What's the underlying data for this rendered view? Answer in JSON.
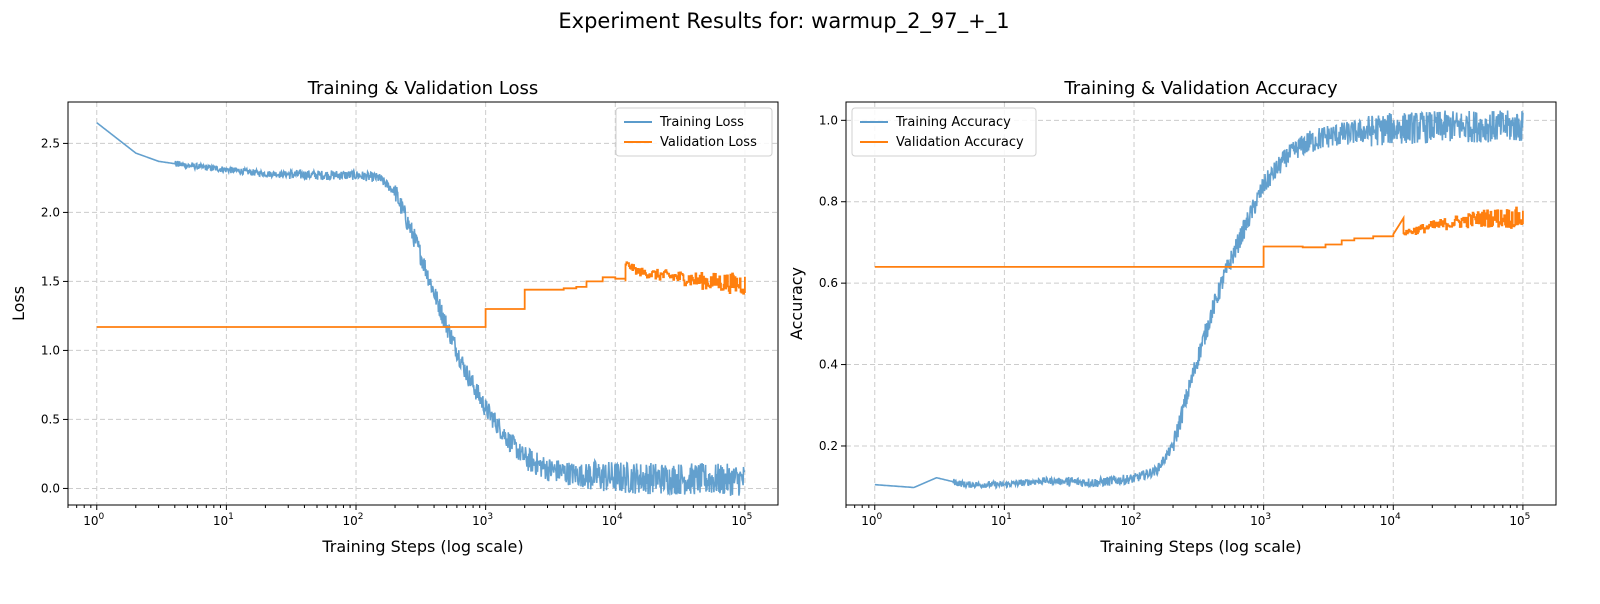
{
  "figure": {
    "suptitle": "Experiment Results for: warmup_2_97_+_1"
  },
  "colors": {
    "training": "#5b9bcb",
    "validation": "#ff7f0e"
  },
  "chart_data": [
    {
      "type": "line",
      "title": "Training & Validation Loss",
      "xlabel": "Training Steps (log scale)",
      "ylabel": "Loss",
      "xscale": "log",
      "xlim": [
        0.6,
        180000
      ],
      "ylim": [
        -0.12,
        2.8
      ],
      "xticks": [
        1,
        10,
        100,
        1000,
        10000,
        100000
      ],
      "xtick_labels": [
        "10^0",
        "10^1",
        "10^2",
        "10^3",
        "10^4",
        "10^5"
      ],
      "yticks": [
        0.0,
        0.5,
        1.0,
        1.5,
        2.0,
        2.5
      ],
      "ytick_labels": [
        "0.0",
        "0.5",
        "1.0",
        "1.5",
        "2.0",
        "2.5"
      ],
      "grid": true,
      "legend": "top-right",
      "series": [
        {
          "name": "Training Loss",
          "color_key": "training",
          "style": "noisy",
          "x": [
            1,
            2,
            3,
            5,
            10,
            20,
            50,
            100,
            150,
            200,
            300,
            400,
            500,
            700,
            1000,
            1500,
            2000,
            3000,
            5000,
            10000,
            30000,
            100000
          ],
          "y": [
            2.65,
            2.43,
            2.37,
            2.34,
            2.31,
            2.28,
            2.27,
            2.27,
            2.25,
            2.15,
            1.75,
            1.42,
            1.18,
            0.85,
            0.58,
            0.35,
            0.22,
            0.14,
            0.1,
            0.08,
            0.07,
            0.06
          ]
        },
        {
          "name": "Validation Loss",
          "color_key": "validation",
          "style": "step",
          "x": [
            1,
            1000,
            2000,
            3000,
            4000,
            5000,
            6000,
            8000,
            10000,
            12000,
            15000,
            20000,
            30000,
            50000,
            100000
          ],
          "y": [
            1.17,
            1.3,
            1.44,
            1.44,
            1.45,
            1.46,
            1.5,
            1.53,
            1.52,
            1.63,
            1.57,
            1.55,
            1.53,
            1.5,
            1.48
          ]
        }
      ]
    },
    {
      "type": "line",
      "title": "Training & Validation Accuracy",
      "xlabel": "Training Steps (log scale)",
      "ylabel": "Accuracy",
      "xscale": "log",
      "xlim": [
        0.6,
        180000
      ],
      "ylim": [
        0.055,
        1.045
      ],
      "xticks": [
        1,
        10,
        100,
        1000,
        10000,
        100000
      ],
      "xtick_labels": [
        "10^0",
        "10^1",
        "10^2",
        "10^3",
        "10^4",
        "10^5"
      ],
      "yticks": [
        0.2,
        0.4,
        0.6,
        0.8,
        1.0
      ],
      "ytick_labels": [
        "0.2",
        "0.4",
        "0.6",
        "0.8",
        "1.0"
      ],
      "grid": true,
      "legend": "top-left",
      "series": [
        {
          "name": "Training Accuracy",
          "color_key": "training",
          "style": "noisy",
          "x": [
            1,
            2,
            3,
            5,
            10,
            20,
            50,
            100,
            150,
            200,
            300,
            400,
            500,
            700,
            1000,
            1500,
            2000,
            3000,
            5000,
            10000,
            30000,
            100000
          ],
          "y": [
            0.105,
            0.098,
            0.122,
            0.105,
            0.105,
            0.115,
            0.11,
            0.12,
            0.14,
            0.2,
            0.4,
            0.53,
            0.62,
            0.73,
            0.84,
            0.91,
            0.94,
            0.96,
            0.97,
            0.98,
            0.985,
            0.985
          ]
        },
        {
          "name": "Validation Accuracy",
          "color_key": "validation",
          "style": "step",
          "x": [
            1,
            1000,
            2000,
            3000,
            4000,
            5000,
            7000,
            10000,
            15000,
            20000,
            30000,
            50000,
            100000
          ],
          "y": [
            0.64,
            0.69,
            0.688,
            0.695,
            0.705,
            0.71,
            0.715,
            0.72,
            0.73,
            0.74,
            0.75,
            0.76,
            0.76
          ]
        }
      ]
    }
  ]
}
